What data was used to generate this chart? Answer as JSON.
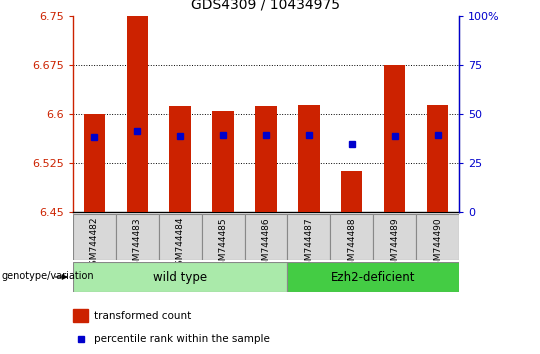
{
  "title": "GDS4309 / 10434975",
  "samples": [
    "GSM744482",
    "GSM744483",
    "GSM744484",
    "GSM744485",
    "GSM744486",
    "GSM744487",
    "GSM744488",
    "GSM744489",
    "GSM744490"
  ],
  "bar_tops": [
    6.601,
    6.75,
    6.612,
    6.605,
    6.613,
    6.614,
    6.513,
    6.675,
    6.614
  ],
  "bar_bottoms": [
    6.45,
    6.45,
    6.45,
    6.45,
    6.45,
    6.45,
    6.45,
    6.45,
    6.45
  ],
  "percentile_values": [
    6.565,
    6.575,
    6.567,
    6.568,
    6.568,
    6.568,
    6.555,
    6.567,
    6.568
  ],
  "ylim": [
    6.45,
    6.75
  ],
  "yticks": [
    6.45,
    6.525,
    6.6,
    6.675,
    6.75
  ],
  "ytick_labels": [
    "6.45",
    "6.525",
    "6.6",
    "6.675",
    "6.75"
  ],
  "y2lim": [
    0,
    100
  ],
  "y2ticks": [
    0,
    25,
    50,
    75,
    100
  ],
  "y2tick_labels": [
    "0",
    "25",
    "50",
    "75",
    "100%"
  ],
  "bar_color": "#cc2200",
  "percentile_color": "#0000cc",
  "grid_color": "#000000",
  "wild_type_label": "wild type",
  "ezh2_label": "Ezh2-deficient",
  "group_color_light": "#aaeaaa",
  "group_color_dark": "#44cc44",
  "legend_red_label": "transformed count",
  "legend_blue_label": "percentile rank within the sample",
  "xlabel_group": "genotype/variation",
  "title_color": "#000000",
  "left_axis_color": "#cc2200",
  "right_axis_color": "#0000cc",
  "tick_label_bg": "#d8d8d8",
  "bar_width": 0.5
}
